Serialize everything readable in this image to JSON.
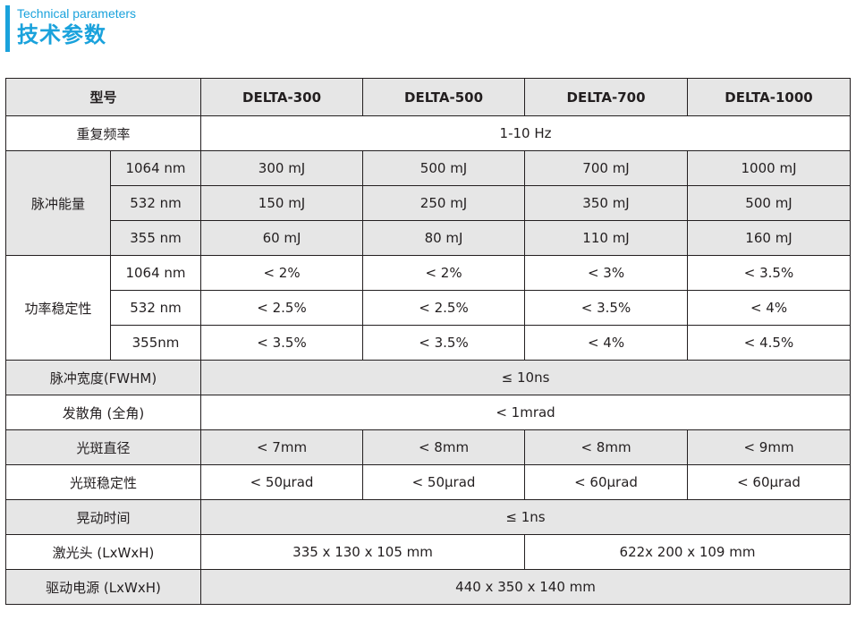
{
  "header": {
    "title_en": "Technical parameters",
    "title_zh": "技术参数",
    "accent_color": "#1aa2dc"
  },
  "table": {
    "col_header": "型号",
    "models": [
      "DELTA-300",
      "DELTA-500",
      "DELTA-700",
      "DELTA-1000"
    ],
    "rep_rate": {
      "label": "重复频率",
      "value": "1-10 Hz"
    },
    "pulse_energy": {
      "label": "脉冲能量",
      "rows": [
        {
          "wl": "1064 nm",
          "values": [
            "300 mJ",
            "500 mJ",
            "700 mJ",
            "1000 mJ"
          ]
        },
        {
          "wl": "532 nm",
          "values": [
            "150 mJ",
            "250 mJ",
            "350 mJ",
            "500 mJ"
          ]
        },
        {
          "wl": "355 nm",
          "values": [
            "60 mJ",
            "80 mJ",
            "110 mJ",
            "160 mJ"
          ]
        }
      ]
    },
    "power_stability": {
      "label": "功率稳定性",
      "rows": [
        {
          "wl": "1064 nm",
          "values": [
            "< 2%",
            "< 2%",
            "< 3%",
            "< 3.5%"
          ]
        },
        {
          "wl": "532 nm",
          "values": [
            "< 2.5%",
            "< 2.5%",
            "< 3.5%",
            "< 4%"
          ]
        },
        {
          "wl": "355nm",
          "values": [
            "< 3.5%",
            "< 3.5%",
            "< 4%",
            "< 4.5%"
          ]
        }
      ]
    },
    "pulse_width": {
      "label": "脉冲宽度(FWHM)",
      "value": "≤ 10ns"
    },
    "divergence": {
      "label": "发散角 (全角)",
      "value": "< 1mrad"
    },
    "beam_diameter": {
      "label": "光斑直径",
      "values": [
        "< 7mm",
        "< 8mm",
        "< 8mm",
        "< 9mm"
      ]
    },
    "beam_stability": {
      "label": "光斑稳定性",
      "values": [
        "< 50μrad",
        "< 50μrad",
        "< 60μrad",
        "< 60μrad"
      ]
    },
    "jitter": {
      "label": "晃动时间",
      "value": "≤ 1ns"
    },
    "laser_head": {
      "label": "激光头 (LxWxH)",
      "values": [
        "335 x 130 x 105 mm",
        "622x 200 x 109 mm"
      ]
    },
    "power_supply": {
      "label": "驱动电源 (LxWxH)",
      "value": "440 x 350 x 140 mm"
    }
  }
}
